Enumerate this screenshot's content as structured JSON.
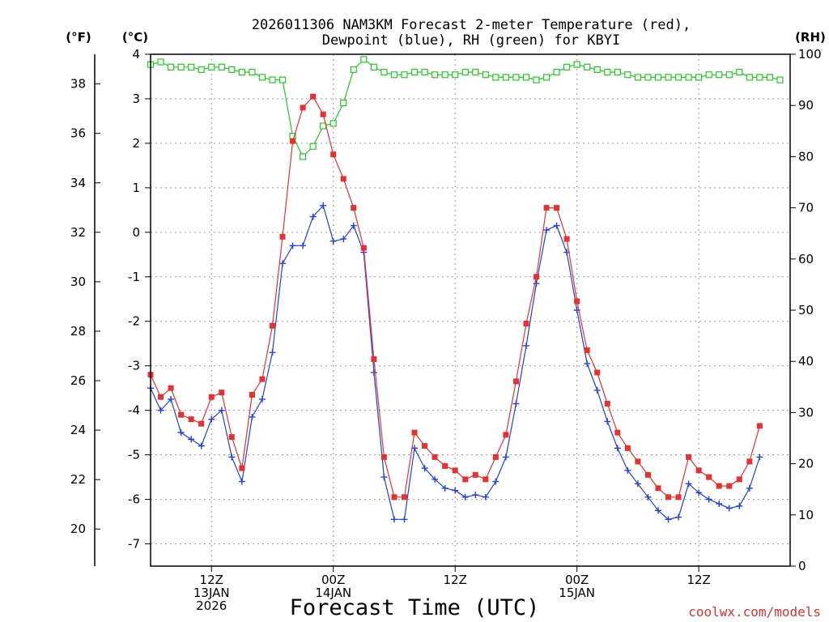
{
  "chart_data": {
    "type": "line",
    "title_line1": "2026011306 NAM3KM Forecast 2-meter Temperature (red),",
    "title_line2": "Dewpoint (blue), RH (green) for KBYI",
    "unit_f": "(°F)",
    "unit_c": "(°C)",
    "unit_rh": "(RH)",
    "xlabel": "Forecast Time (UTC)",
    "credit": "coolwx.com/models",
    "ylim_c": [
      -7.5,
      4
    ],
    "ylim_rh": [
      0,
      100
    ],
    "x_range_hours": [
      0,
      63
    ],
    "y_ticks_c": [
      "4",
      "3",
      "2",
      "1",
      "0",
      "-1",
      "-2",
      "-3",
      "-4",
      "-5",
      "-6",
      "-7"
    ],
    "y_tick_vals_c": [
      4,
      3,
      2,
      1,
      0,
      -1,
      -2,
      -3,
      -4,
      -5,
      -6,
      -7
    ],
    "y_ticks_f": [
      "38",
      "36",
      "34",
      "32",
      "30",
      "28",
      "26",
      "24",
      "22",
      "20"
    ],
    "y_tick_vals_f": [
      38,
      36,
      34,
      32,
      30,
      28,
      26,
      24,
      22,
      20
    ],
    "y_ticks_rh": [
      "100",
      "90",
      "80",
      "70",
      "60",
      "50",
      "40",
      "30",
      "20",
      "10",
      "0"
    ],
    "y_tick_vals_rh": [
      100,
      90,
      80,
      70,
      60,
      50,
      40,
      30,
      20,
      10,
      0
    ],
    "x_ticks": [
      {
        "hour": 6,
        "line1": "12Z",
        "line2": "13JAN",
        "line3": "2026"
      },
      {
        "hour": 18,
        "line1": "00Z",
        "line2": "14JAN",
        "line3": ""
      },
      {
        "hour": 30,
        "line1": "12Z",
        "line2": "",
        "line3": ""
      },
      {
        "hour": 42,
        "line1": "00Z",
        "line2": "15JAN",
        "line3": ""
      },
      {
        "hour": 54,
        "line1": "12Z",
        "line2": "",
        "line3": ""
      }
    ],
    "series": [
      {
        "name": "Temperature",
        "color": "#e83030",
        "marker": "filled-square",
        "values": [
          -3.2,
          -3.7,
          -3.5,
          -4.1,
          -4.2,
          -4.3,
          -3.7,
          -3.6,
          -4.6,
          -5.3,
          -3.65,
          -3.3,
          -2.1,
          -0.1,
          2.05,
          2.8,
          3.05,
          2.65,
          1.75,
          1.2,
          0.55,
          -0.35,
          -2.85,
          -5.05,
          -5.95,
          -5.95,
          -4.5,
          -4.8,
          -5.05,
          -5.25,
          -5.35,
          -5.55,
          -5.45,
          -5.55,
          -5.05,
          -4.55,
          -3.35,
          -2.05,
          -1.0,
          0.55,
          0.55,
          -0.15,
          -1.55,
          -2.65,
          -3.15,
          -3.85,
          -4.5,
          -4.85,
          -5.15,
          -5.45,
          -5.75,
          -5.95,
          -5.95,
          -5.05,
          -5.35,
          -5.5,
          -5.7,
          -5.7,
          -5.55,
          -5.15,
          -4.35
        ],
        "times": [
          0,
          1,
          2,
          3,
          4,
          5,
          6,
          7,
          8,
          9,
          10,
          11,
          12,
          13,
          14,
          15,
          16,
          17,
          18,
          19,
          20,
          21,
          22,
          23,
          24,
          25,
          26,
          27,
          28,
          29,
          30,
          31,
          32,
          33,
          34,
          35,
          36,
          37,
          38,
          39,
          40,
          41,
          42,
          43,
          44,
          45,
          46,
          47,
          48,
          49,
          50,
          51,
          52,
          53,
          54,
          55,
          56,
          57,
          58,
          59,
          60
        ]
      },
      {
        "name": "Dewpoint",
        "color": "#2040e0",
        "marker": "plus",
        "values": [
          -3.5,
          -4.0,
          -3.75,
          -4.5,
          -4.65,
          -4.8,
          -4.2,
          -4.0,
          -5.05,
          -5.6,
          -4.15,
          -3.75,
          -2.7,
          -0.7,
          -0.3,
          -0.3,
          0.35,
          0.6,
          -0.2,
          -0.15,
          0.15,
          -0.45,
          -3.15,
          -5.5,
          -6.45,
          -6.45,
          -4.85,
          -5.3,
          -5.55,
          -5.75,
          -5.8,
          -5.95,
          -5.9,
          -5.95,
          -5.6,
          -5.05,
          -3.85,
          -2.55,
          -1.15,
          0.05,
          0.15,
          -0.45,
          -1.75,
          -2.95,
          -3.55,
          -4.25,
          -4.85,
          -5.35,
          -5.65,
          -5.95,
          -6.25,
          -6.45,
          -6.4,
          -5.65,
          -5.85,
          -6.0,
          -6.1,
          -6.2,
          -6.15,
          -5.75,
          -5.05
        ],
        "times": [
          0,
          1,
          2,
          3,
          4,
          5,
          6,
          7,
          8,
          9,
          10,
          11,
          12,
          13,
          14,
          15,
          16,
          17,
          18,
          19,
          20,
          21,
          22,
          23,
          24,
          25,
          26,
          27,
          28,
          29,
          30,
          31,
          32,
          33,
          34,
          35,
          36,
          37,
          38,
          39,
          40,
          41,
          42,
          43,
          44,
          45,
          46,
          47,
          48,
          49,
          50,
          51,
          52,
          53,
          54,
          55,
          56,
          57,
          58,
          59,
          60
        ]
      },
      {
        "name": "RH",
        "color": "#20cc20",
        "marker": "open-square",
        "values": [
          98,
          98.5,
          97.5,
          97.5,
          97.5,
          97,
          97.5,
          97.5,
          97,
          96.5,
          96.5,
          95.5,
          95,
          95,
          84,
          80,
          82,
          86,
          86.5,
          90.5,
          97,
          99,
          97.5,
          96.5,
          96,
          96,
          96.5,
          96.5,
          96,
          96,
          96,
          96.5,
          96.5,
          96,
          95.5,
          95.5,
          95.5,
          95.5,
          95,
          95.5,
          96.5,
          97.5,
          98,
          97.5,
          97,
          96.5,
          96.5,
          96,
          95.5,
          95.5,
          95.5,
          95.5,
          95.5,
          95.5,
          95.5,
          96,
          96,
          96,
          96.5,
          95.5,
          95.5,
          95.5,
          95
        ],
        "times": [
          0,
          1,
          2,
          3,
          4,
          5,
          6,
          7,
          8,
          9,
          10,
          11,
          12,
          13,
          14,
          15,
          16,
          17,
          18,
          19,
          20,
          21,
          22,
          23,
          24,
          25,
          26,
          27,
          28,
          29,
          30,
          31,
          32,
          33,
          34,
          35,
          36,
          37,
          38,
          39,
          40,
          41,
          42,
          43,
          44,
          45,
          46,
          47,
          48,
          49,
          50,
          51,
          52,
          53,
          54,
          55,
          56,
          57,
          58,
          59,
          60,
          61,
          62
        ]
      }
    ]
  }
}
